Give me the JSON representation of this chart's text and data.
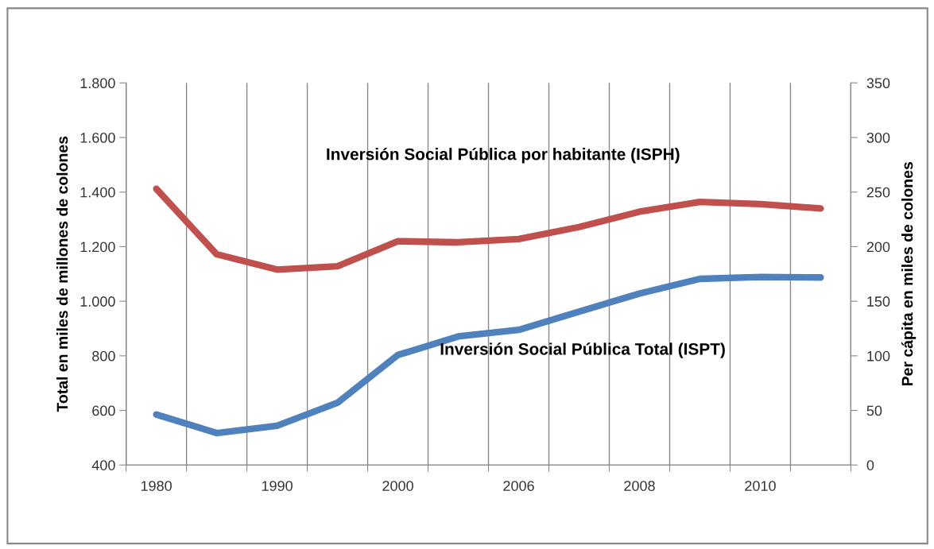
{
  "chart_data": {
    "type": "line",
    "ylabel": "Total en miles de millones de colones",
    "y2label": "Per cápita en miles de colones",
    "categories": [
      "1980",
      null,
      "1990",
      null,
      "2000",
      null,
      "2006",
      null,
      "2008",
      null,
      "2010",
      null
    ],
    "series": [
      {
        "name": "Inversión Social Pública por habitante (ISPH)",
        "color": "#c0504d",
        "axis": "y2",
        "values": [
          253,
          193,
          179,
          182,
          205,
          204,
          207,
          218,
          232,
          241,
          239,
          235
        ]
      },
      {
        "name": "Inversión Social Pública Total (ISPT)",
        "color": "#4f81bd",
        "values": [
          585,
          517,
          544,
          628,
          803,
          871,
          895,
          962,
          1028,
          1082,
          1089,
          1087
        ]
      }
    ],
    "ylim": [
      400,
      1800
    ],
    "yticks": [
      {
        "value": 400,
        "label": "400"
      },
      {
        "value": 600,
        "label": "600"
      },
      {
        "value": 800,
        "label": "800"
      },
      {
        "value": 1000,
        "label": "1.000"
      },
      {
        "value": 1200,
        "label": "1.200"
      },
      {
        "value": 1400,
        "label": "1.400"
      },
      {
        "value": 1600,
        "label": "1.600"
      },
      {
        "value": 1800,
        "label": "1.800"
      }
    ],
    "y2lim": [
      0,
      350
    ],
    "y2ticks": [
      0,
      50,
      100,
      150,
      200,
      250,
      300,
      350
    ],
    "grid": "x",
    "legend": false,
    "marker": "none",
    "line_style": "solid"
  }
}
